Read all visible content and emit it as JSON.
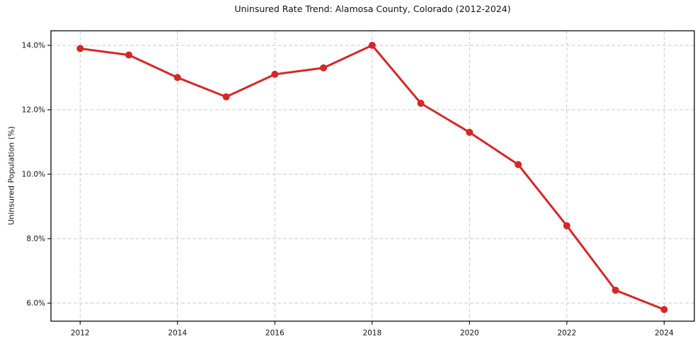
{
  "chart_data": {
    "type": "line",
    "title": "Uninsured Rate Trend: Alamosa County, Colorado (2012-2024)",
    "xlabel": "",
    "ylabel": "Uninsured Population (%)",
    "x": [
      2012,
      2013,
      2014,
      2015,
      2016,
      2017,
      2018,
      2019,
      2020,
      2021,
      2022,
      2023,
      2024
    ],
    "y": [
      13.9,
      13.7,
      13.0,
      12.4,
      13.1,
      13.3,
      14.0,
      12.2,
      11.3,
      10.3,
      8.4,
      6.4,
      5.8
    ],
    "xticks": {
      "values": [
        2012,
        2014,
        2016,
        2018,
        2020,
        2022,
        2024
      ],
      "labels": [
        "2012",
        "2014",
        "2016",
        "2018",
        "2020",
        "2022",
        "2024"
      ]
    },
    "yticks": {
      "values": [
        6,
        8,
        10,
        12,
        14
      ],
      "labels": [
        "6.0%",
        "8.0%",
        "10.0%",
        "12.0%",
        "14.0%"
      ]
    },
    "xlim": [
      2011.4,
      2024.62
    ],
    "ylim": [
      5.44,
      14.45
    ],
    "grid": "dashed-both-axes",
    "legend": "none",
    "style": {
      "line_color": "#d62728",
      "marker": "circle",
      "marker_radius": 5,
      "line_width": 3,
      "grid_color": "#c9c9c9",
      "spine_color": "#1a1a1a",
      "tick_color": "#1a1a1a",
      "text_color": "#111111",
      "background": "#ffffff"
    }
  }
}
